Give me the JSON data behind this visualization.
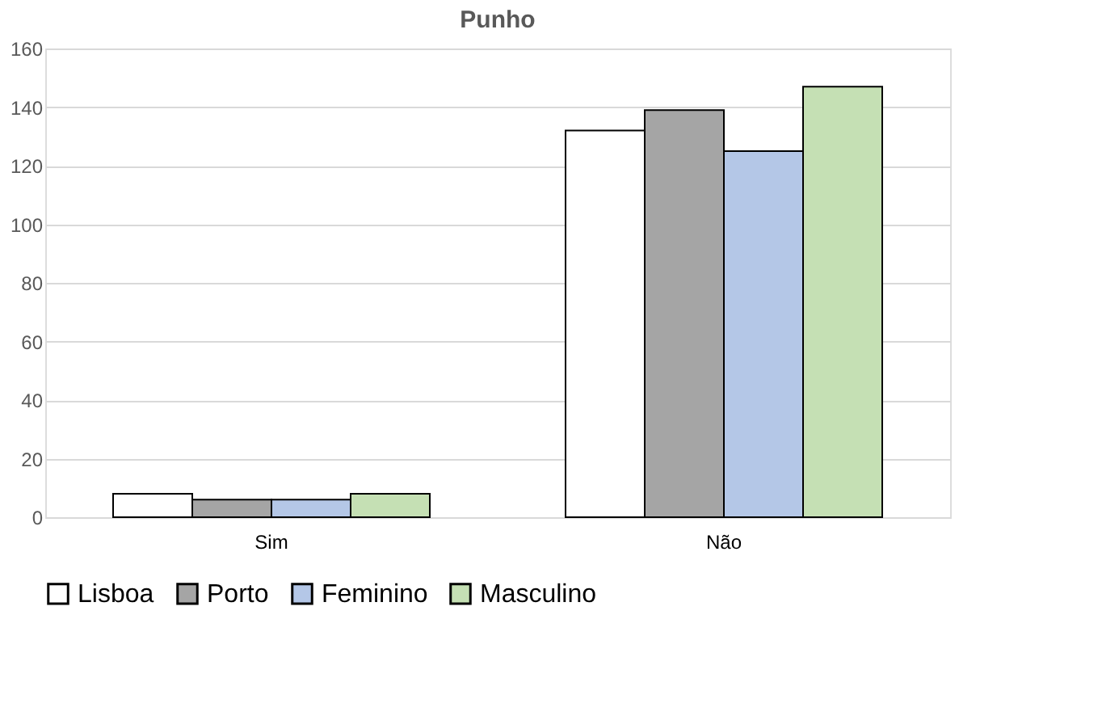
{
  "chart_data": {
    "type": "bar",
    "title": "Punho",
    "categories": [
      "Sim",
      "Não"
    ],
    "series": [
      {
        "name": "Lisboa",
        "color": "#ffffff",
        "values": [
          8,
          132
        ]
      },
      {
        "name": "Porto",
        "color": "#a5a5a5",
        "values": [
          6,
          139
        ]
      },
      {
        "name": "Feminino",
        "color": "#b4c7e7",
        "values": [
          6,
          125
        ]
      },
      {
        "name": "Masculino",
        "color": "#c5e0b4",
        "values": [
          8,
          147
        ]
      }
    ],
    "ylim": [
      0,
      160
    ],
    "yticks": [
      0,
      20,
      40,
      60,
      80,
      100,
      120,
      140,
      160
    ],
    "grid": "y",
    "legend": "bottom"
  }
}
